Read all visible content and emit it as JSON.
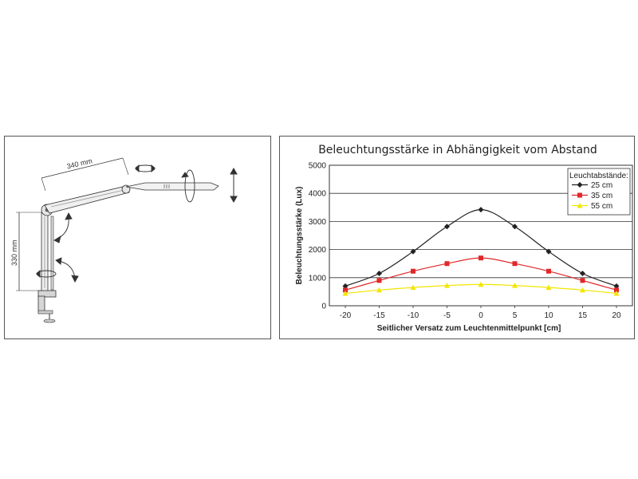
{
  "lamp_diagram": {
    "arm_upper_length": "340 mm",
    "arm_lower_length": "330 mm"
  },
  "chart_data": {
    "type": "line",
    "title": "Beleuchtungsstärke in Abhängigkeit vom Abstand",
    "xlabel": "Seitlicher Versatz zum Leuchtenmittelpunkt [cm]",
    "ylabel": "Beleuchtungsstärke (Lux)",
    "x": [
      -20,
      -15,
      -10,
      -5,
      0,
      5,
      10,
      15,
      20
    ],
    "xlim": [
      -20,
      20
    ],
    "ylim": [
      0,
      5000
    ],
    "yticks": [
      0,
      1000,
      2000,
      3000,
      4000,
      5000
    ],
    "grid": "horizontal",
    "legend": {
      "title": "Leuchtabstände:",
      "position": "top-right"
    },
    "series": [
      {
        "name": "25 cm",
        "color": "#222222",
        "marker": "diamond",
        "values": [
          700,
          1150,
          1930,
          2820,
          3420,
          2820,
          1930,
          1150,
          700
        ]
      },
      {
        "name": "35 cm",
        "color": "#e0282a",
        "marker": "square",
        "values": [
          560,
          900,
          1230,
          1500,
          1700,
          1500,
          1230,
          900,
          560
        ]
      },
      {
        "name": "55 cm",
        "color": "#f2e600",
        "marker": "triangle",
        "values": [
          440,
          560,
          650,
          720,
          760,
          720,
          650,
          560,
          440
        ]
      }
    ]
  }
}
